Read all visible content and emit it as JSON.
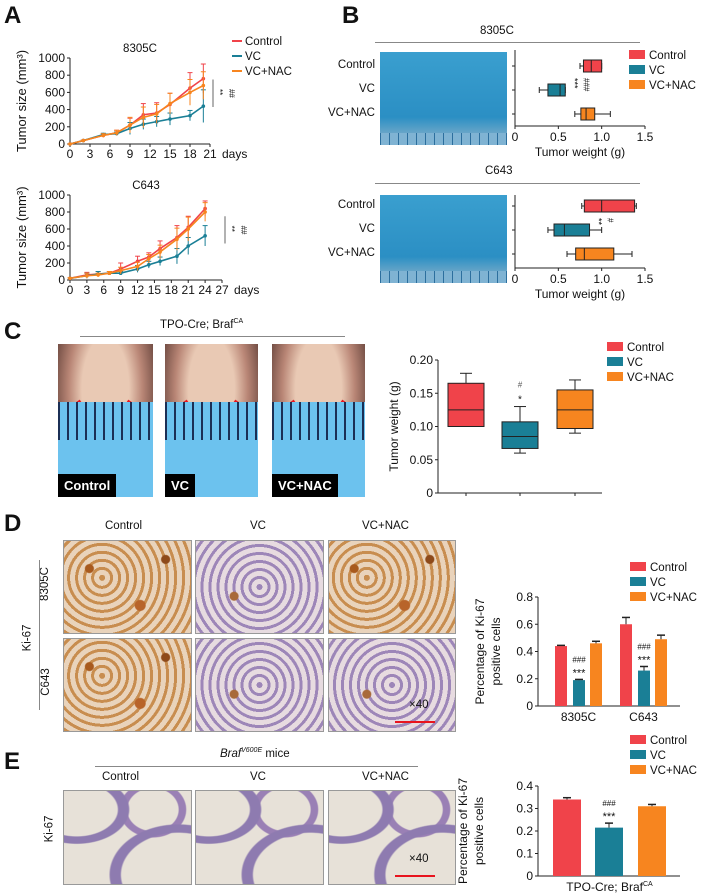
{
  "colors": {
    "control": "#f0434a",
    "vc": "#1a7f96",
    "vc_nac": "#f7851f"
  },
  "panel_labels": {
    "a": "A",
    "b": "B",
    "c": "C",
    "d": "D",
    "e": "E"
  },
  "legend": [
    "Control",
    "VC",
    "VC+NAC"
  ],
  "panel_b": {
    "title_8305c": "8305C",
    "title_c643": "C643",
    "row_labels": [
      "Control",
      "VC",
      "VC+NAC"
    ]
  },
  "panel_c": {
    "title": "TPO-Cre; Braf",
    "title_sup": "CA",
    "photo_captions": [
      "Control",
      "VC",
      "VC+NAC"
    ]
  },
  "panel_d": {
    "col_headers": [
      "Control",
      "VC",
      "VC+NAC"
    ],
    "row_labels": [
      "8305C",
      "C643"
    ],
    "stain": "Ki-67",
    "magnification": "×40"
  },
  "panel_e": {
    "title_italic": "Braf",
    "title_sup": "V600E",
    "title_rest": " mice",
    "col_headers": [
      "Control",
      "VC",
      "VC+NAC"
    ],
    "stain": "Ki-67",
    "magnification": "×40"
  },
  "chart_data": [
    {
      "type": "line",
      "title": "8305C",
      "ylabel": "Tumor size (mm³)",
      "xlabel": "days",
      "xlim": [
        0,
        21
      ],
      "ylim": [
        0,
        1000
      ],
      "xticks": [
        0,
        3,
        6,
        9,
        12,
        15,
        18,
        21
      ],
      "yticks": [
        0,
        200,
        400,
        600,
        800,
        1000
      ],
      "x": [
        0,
        2,
        5,
        7,
        9,
        11,
        13,
        15,
        18,
        20
      ],
      "series": [
        {
          "name": "Control",
          "values": [
            0,
            40,
            100,
            130,
            220,
            340,
            360,
            460,
            650,
            760
          ],
          "error": [
            0,
            5,
            20,
            30,
            80,
            130,
            120,
            130,
            180,
            170
          ]
        },
        {
          "name": "VC",
          "values": [
            0,
            40,
            110,
            120,
            180,
            230,
            260,
            290,
            330,
            440
          ],
          "error": [
            0,
            5,
            15,
            20,
            70,
            60,
            60,
            70,
            60,
            190
          ]
        },
        {
          "name": "VC+NAC",
          "values": [
            0,
            40,
            100,
            130,
            220,
            310,
            350,
            470,
            600,
            680
          ],
          "error": [
            0,
            5,
            20,
            30,
            90,
            120,
            110,
            120,
            150,
            160
          ]
        }
      ],
      "significance": [
        "**",
        "##"
      ],
      "legend": "right"
    },
    {
      "type": "line",
      "title": "C643",
      "ylabel": "Tumor size (mm³)",
      "xlabel": "days",
      "xlim": [
        0,
        27
      ],
      "ylim": [
        0,
        1000
      ],
      "xticks": [
        0,
        3,
        6,
        9,
        12,
        15,
        18,
        21,
        24,
        27
      ],
      "yticks": [
        0,
        200,
        400,
        600,
        800,
        1000
      ],
      "x": [
        0,
        3,
        5,
        7,
        9,
        12,
        14,
        16,
        19,
        21,
        24
      ],
      "series": [
        {
          "name": "Control",
          "values": [
            20,
            60,
            70,
            80,
            130,
            220,
            270,
            370,
            500,
            620,
            840
          ],
          "error": [
            5,
            30,
            30,
            20,
            70,
            60,
            50,
            90,
            140,
            130,
            90
          ]
        },
        {
          "name": "VC",
          "values": [
            20,
            50,
            70,
            80,
            80,
            130,
            180,
            220,
            280,
            400,
            520
          ],
          "error": [
            5,
            30,
            30,
            20,
            20,
            40,
            40,
            50,
            90,
            100,
            120
          ]
        },
        {
          "name": "VC+NAC",
          "values": [
            20,
            50,
            60,
            80,
            110,
            160,
            250,
            330,
            480,
            600,
            800
          ],
          "error": [
            5,
            30,
            20,
            20,
            40,
            50,
            50,
            80,
            130,
            140,
            110
          ]
        }
      ],
      "significance": [
        "**",
        "##"
      ]
    },
    {
      "type": "box",
      "orientation": "horizontal",
      "xlabel": "Tumor weight (g)",
      "xlim": [
        0,
        1.5
      ],
      "xticks": [
        "0",
        "0.5",
        "1.0",
        "1.5"
      ],
      "categories": [
        "Control",
        "VC",
        "VC+NAC"
      ],
      "boxes": [
        {
          "min": 0.75,
          "q1": 0.79,
          "median": 0.88,
          "q3": 1.0,
          "max": 1.0
        },
        {
          "min": 0.28,
          "q1": 0.38,
          "median": 0.52,
          "q3": 0.58,
          "max": 0.58
        },
        {
          "min": 0.69,
          "q1": 0.76,
          "median": 0.82,
          "q3": 0.92,
          "max": 1.1
        }
      ],
      "significance": [
        "***",
        "###"
      ],
      "legend": "right"
    },
    {
      "type": "box",
      "orientation": "horizontal",
      "xlabel": "Tumor weight (g)",
      "xlim": [
        0,
        1.5
      ],
      "xticks": [
        "0",
        "0.5",
        "1.0",
        "1.5"
      ],
      "categories": [
        "Control",
        "VC",
        "VC+NAC"
      ],
      "boxes": [
        {
          "min": 0.77,
          "q1": 0.8,
          "median": 1.0,
          "q3": 1.38,
          "max": 1.4
        },
        {
          "min": 0.38,
          "q1": 0.45,
          "median": 0.57,
          "q3": 0.86,
          "max": 1.0
        },
        {
          "min": 0.6,
          "q1": 0.7,
          "median": 0.8,
          "q3": 1.14,
          "max": 1.35
        }
      ],
      "significance": [
        "**",
        "#"
      ]
    },
    {
      "type": "box",
      "orientation": "vertical",
      "ylabel": "Tumor weight (g)",
      "ylim": [
        0,
        0.2
      ],
      "yticks": [
        "0",
        "0.05",
        "0.10",
        "0.15",
        "0.20"
      ],
      "categories": [
        "Control",
        "VC",
        "VC+NAC"
      ],
      "boxes": [
        {
          "min": 0.1,
          "q1": 0.1,
          "median": 0.125,
          "q3": 0.165,
          "max": 0.18
        },
        {
          "min": 0.06,
          "q1": 0.067,
          "median": 0.085,
          "q3": 0.107,
          "max": 0.13
        },
        {
          "min": 0.09,
          "q1": 0.097,
          "median": 0.125,
          "q3": 0.155,
          "max": 0.17
        }
      ],
      "significance": [
        "*",
        "#"
      ],
      "legend": "top-right"
    },
    {
      "type": "bar",
      "ylabel": [
        "Percentage of Ki-67",
        "positive cells"
      ],
      "ylim": [
        0,
        0.8
      ],
      "yticks": [
        "0",
        "0.2",
        "0.4",
        "0.6",
        "0.8"
      ],
      "categories": [
        "8305C",
        "C643"
      ],
      "series": [
        {
          "name": "Control",
          "values": [
            0.44,
            0.6
          ],
          "error": [
            0.005,
            0.05
          ]
        },
        {
          "name": "VC",
          "values": [
            0.19,
            0.26
          ],
          "error": [
            0.005,
            0.03
          ]
        },
        {
          "name": "VC+NAC",
          "values": [
            0.46,
            0.49
          ],
          "error": [
            0.015,
            0.03
          ]
        }
      ],
      "significance": [
        [
          "***",
          "###"
        ],
        [
          "***",
          "###"
        ]
      ],
      "legend": "top-right"
    },
    {
      "type": "bar",
      "ylabel": [
        "Percentage of Ki-67",
        "positive cells"
      ],
      "ylim": [
        0,
        0.4
      ],
      "yticks": [
        "0",
        "0.1",
        "0.2",
        "0.3",
        "0.4"
      ],
      "categories": [
        "TPO-Cre; Braf"
      ],
      "category_sup": "CA",
      "series": [
        {
          "name": "Control",
          "values": [
            0.34
          ],
          "error": [
            0.008
          ]
        },
        {
          "name": "VC",
          "values": [
            0.215
          ],
          "error": [
            0.02
          ]
        },
        {
          "name": "VC+NAC",
          "values": [
            0.31
          ],
          "error": [
            0.008
          ]
        }
      ],
      "significance": [
        [
          "***",
          "###"
        ]
      ],
      "legend": "top-right"
    }
  ]
}
